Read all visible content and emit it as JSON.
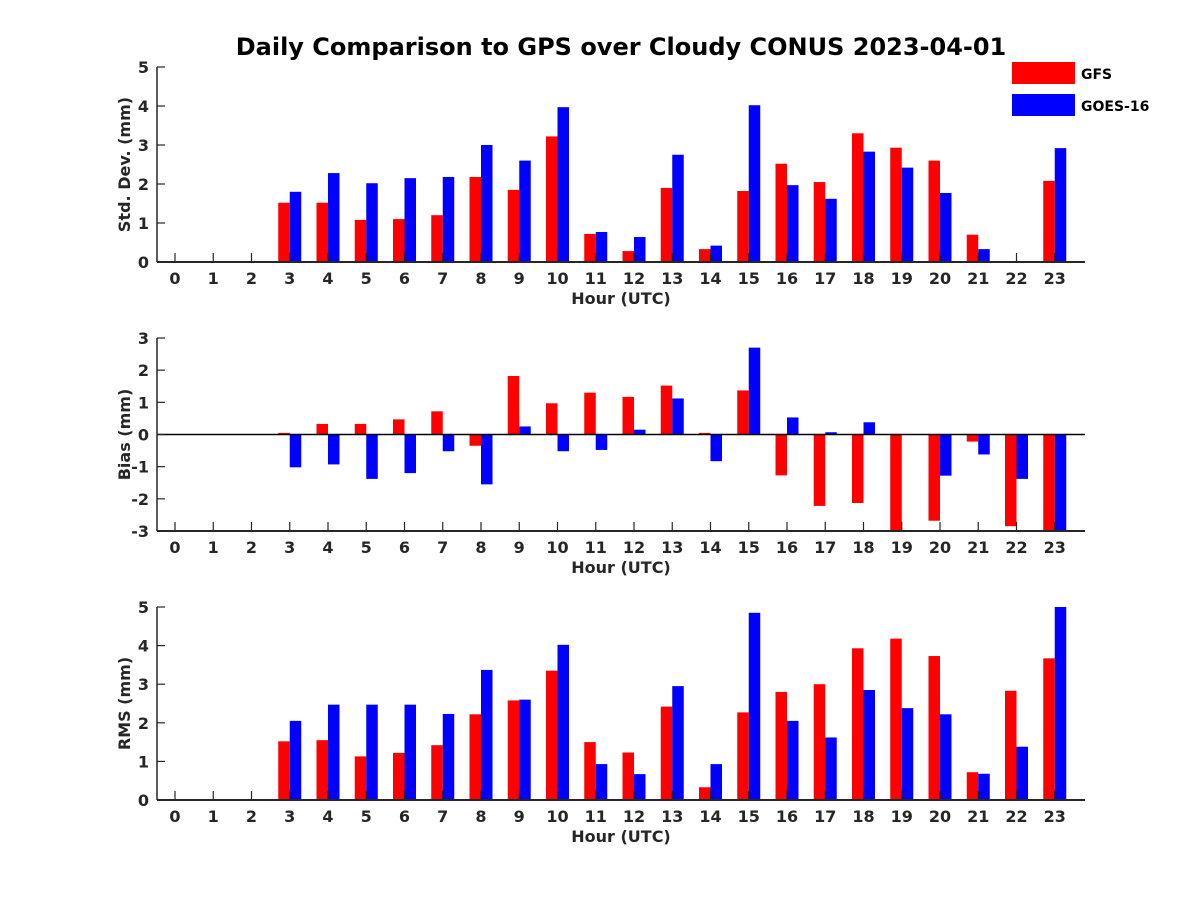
{
  "figure": {
    "title": "Daily Comparison to GPS over Cloudy CONUS 2023-04-01"
  },
  "legend": {
    "placement": "top-right",
    "items": [
      {
        "label": "GFS",
        "color": "#ff0000"
      },
      {
        "label": "GOES-16",
        "color": "#0000ff"
      }
    ]
  },
  "chart_data": [
    {
      "type": "bar",
      "xlabel": "Hour (UTC)",
      "ylabel": "Std. Dev. (mm)",
      "ylim": [
        0,
        5
      ],
      "yticks": [
        0,
        1,
        2,
        3,
        4,
        5
      ],
      "categories": [
        "0",
        "1",
        "2",
        "3",
        "4",
        "5",
        "6",
        "7",
        "8",
        "9",
        "10",
        "11",
        "12",
        "13",
        "14",
        "15",
        "16",
        "17",
        "18",
        "19",
        "20",
        "21",
        "22",
        "23"
      ],
      "series": [
        {
          "name": "GFS",
          "color": "#ff0000",
          "values": [
            null,
            null,
            null,
            1.52,
            1.52,
            1.08,
            1.1,
            1.2,
            2.18,
            1.85,
            3.22,
            0.72,
            0.28,
            1.9,
            0.33,
            1.82,
            2.52,
            2.05,
            3.3,
            2.93,
            2.6,
            0.7,
            null,
            2.08
          ]
        },
        {
          "name": "GOES-16",
          "color": "#0000ff",
          "values": [
            null,
            null,
            null,
            1.8,
            2.28,
            2.02,
            2.15,
            2.18,
            3.0,
            2.6,
            3.97,
            0.77,
            0.64,
            2.75,
            0.42,
            4.02,
            1.97,
            1.62,
            2.83,
            2.42,
            1.77,
            0.33,
            null,
            2.92
          ]
        }
      ]
    },
    {
      "type": "bar",
      "xlabel": "Hour (UTC)",
      "ylabel": "Bias (mm)",
      "ylim": [
        -3,
        3
      ],
      "yticks": [
        -3,
        -2,
        -1,
        0,
        1,
        2,
        3
      ],
      "categories": [
        "0",
        "1",
        "2",
        "3",
        "4",
        "5",
        "6",
        "7",
        "8",
        "9",
        "10",
        "11",
        "12",
        "13",
        "14",
        "15",
        "16",
        "17",
        "18",
        "19",
        "20",
        "21",
        "22",
        "23"
      ],
      "series": [
        {
          "name": "GFS",
          "color": "#ff0000",
          "values": [
            null,
            null,
            null,
            0.05,
            0.33,
            0.33,
            0.47,
            0.72,
            -0.35,
            1.82,
            0.97,
            1.3,
            1.17,
            1.52,
            0.05,
            1.37,
            -1.27,
            -2.22,
            -2.13,
            -3.0,
            -2.68,
            -0.22,
            -2.85,
            -3.0
          ]
        },
        {
          "name": "GOES-16",
          "color": "#0000ff",
          "values": [
            null,
            null,
            null,
            -1.02,
            -0.93,
            -1.38,
            -1.2,
            -0.52,
            -1.55,
            0.25,
            -0.52,
            -0.48,
            0.15,
            1.12,
            -0.83,
            2.7,
            0.53,
            0.07,
            0.38,
            null,
            -1.28,
            -0.62,
            -1.38,
            -3.0
          ]
        }
      ]
    },
    {
      "type": "bar",
      "xlabel": "Hour (UTC)",
      "ylabel": "RMS (mm)",
      "ylim": [
        0,
        5
      ],
      "yticks": [
        0,
        1,
        2,
        3,
        4,
        5
      ],
      "categories": [
        "0",
        "1",
        "2",
        "3",
        "4",
        "5",
        "6",
        "7",
        "8",
        "9",
        "10",
        "11",
        "12",
        "13",
        "14",
        "15",
        "16",
        "17",
        "18",
        "19",
        "20",
        "21",
        "22",
        "23"
      ],
      "series": [
        {
          "name": "GFS",
          "color": "#ff0000",
          "values": [
            null,
            null,
            null,
            1.52,
            1.55,
            1.13,
            1.22,
            1.42,
            2.22,
            2.58,
            3.35,
            1.5,
            1.23,
            2.42,
            0.33,
            2.27,
            2.8,
            3.0,
            3.93,
            4.18,
            3.73,
            0.72,
            2.83,
            3.67
          ]
        },
        {
          "name": "GOES-16",
          "color": "#0000ff",
          "values": [
            null,
            null,
            null,
            2.05,
            2.47,
            2.47,
            2.47,
            2.23,
            3.37,
            2.6,
            4.02,
            0.93,
            0.67,
            2.95,
            0.93,
            4.85,
            2.05,
            1.62,
            2.85,
            2.38,
            2.22,
            0.68,
            1.38,
            5.0
          ]
        }
      ]
    }
  ]
}
